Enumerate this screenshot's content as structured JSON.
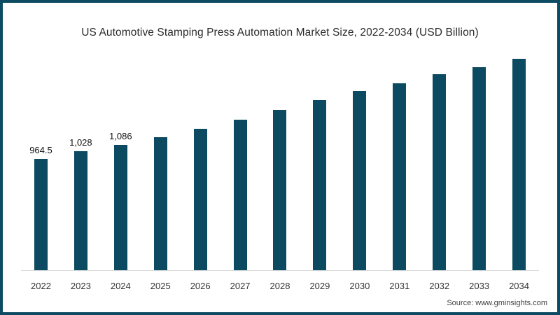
{
  "source": "Source: www.gminsights.com",
  "colors": {
    "bar": "#0b4a61",
    "frame_border": "#0d4b63",
    "axis_line": "#d9d9d9",
    "title_text": "#2b2b2b",
    "label_text": "#111111",
    "tick_text": "#333333",
    "source_text": "#404040"
  },
  "chart_data": {
    "type": "bar",
    "title": "US Automotive Stamping Press Automation Market Size, 2022-2034 (USD Billion)",
    "xlabel": "",
    "ylabel": "USD Billion",
    "ylim": [
      0,
      2000
    ],
    "grid": false,
    "legend": false,
    "categories": [
      "2022",
      "2023",
      "2024",
      "2025",
      "2026",
      "2027",
      "2028",
      "2029",
      "2030",
      "2031",
      "2032",
      "2033",
      "2034"
    ],
    "values": [
      964.5,
      1028,
      1086,
      1150,
      1225,
      1305,
      1390,
      1475,
      1550,
      1620,
      1695,
      1760,
      1830
    ],
    "data_labels": [
      "964.5",
      "1,028",
      "1,086",
      "",
      "",
      "",
      "",
      "",
      "",
      "",
      "",
      "",
      ""
    ]
  }
}
